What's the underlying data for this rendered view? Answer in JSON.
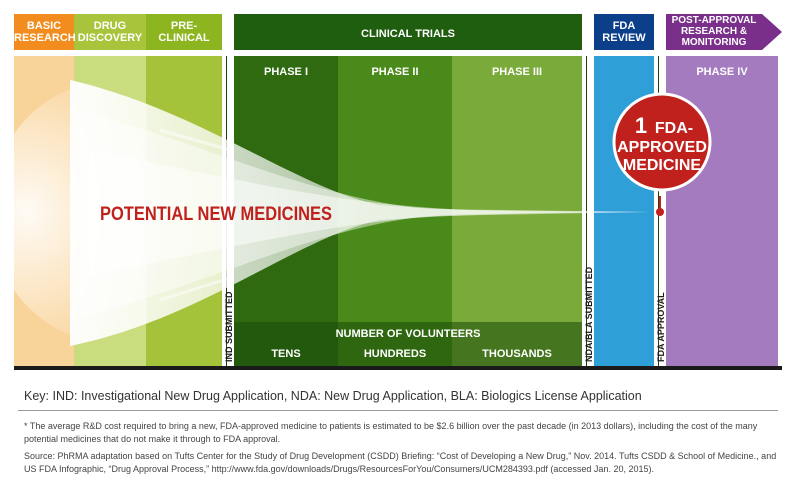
{
  "stages": {
    "basic_research": "BASIC\nRESEARCH",
    "drug_discovery": "DRUG\nDISCOVERY",
    "pre_clinical": "PRE-\nCLINICAL",
    "clinical_trials": "CLINICAL TRIALS",
    "fda_review": "FDA\nREVIEW",
    "post_approval": "POST-APPROVAL\nRESEARCH &\nMONITORING"
  },
  "phases": {
    "phase1": "PHASE I",
    "phase2": "PHASE II",
    "phase3": "PHASE III",
    "phase4": "PHASE IV"
  },
  "milestones": {
    "ind": "IND SUBMITTED",
    "nda": "NDA/BLA SUBMITTED",
    "fda_approval": "FDA APPROVAL"
  },
  "funnel_label": "POTENTIAL NEW MEDICINES",
  "approved": {
    "count": "1",
    "line1": "FDA-",
    "line2": "APPROVED",
    "line3": "MEDICINE"
  },
  "volunteers": {
    "title": "NUMBER OF VOLUNTEERS",
    "tens": "TENS",
    "hundreds": "HUNDREDS",
    "thousands": "THOUSANDS"
  },
  "colors": {
    "basic": "#f28c1e",
    "basic_body": "#f9d49a",
    "discovery": "#a8c43a",
    "discovery_body": "#c9dc7e",
    "preclinical": "#7fa818",
    "preclinical_body": "#a4c23a",
    "clinical_dark": "#1e5e0e",
    "phase1": "#2f6a10",
    "phase2": "#4a8a1a",
    "phase3": "#7aaa3a",
    "fda": "#0b3f8a",
    "fda_body": "#2f9fd8",
    "post": "#7a2f8a",
    "post_body": "#a57bc0",
    "red": "#c0211d"
  },
  "key": "Key: IND: Investigational New Drug Application, NDA: New Drug Application, BLA: Biologics License Application",
  "footnote": "* The average R&D cost required to bring a new, FDA-approved medicine to patients is estimated to be $2.6 billion over the past decade (in 2013 dollars), including the cost of the many potential medicines that do not make it through to FDA approval.",
  "source": "Source: PhRMA adaptation based on Tufts Center for the Study of Drug Development (CSDD) Briefing: “Cost of Developing a New Drug,” Nov. 2014. Tufts CSDD & School of Medicine., and US FDA Infographic, “Drug Approval Process,” http://www.fda.gov/downloads/Drugs/ResourcesForYou/Consumers/UCM284393.pdf (accessed Jan. 20, 2015)."
}
